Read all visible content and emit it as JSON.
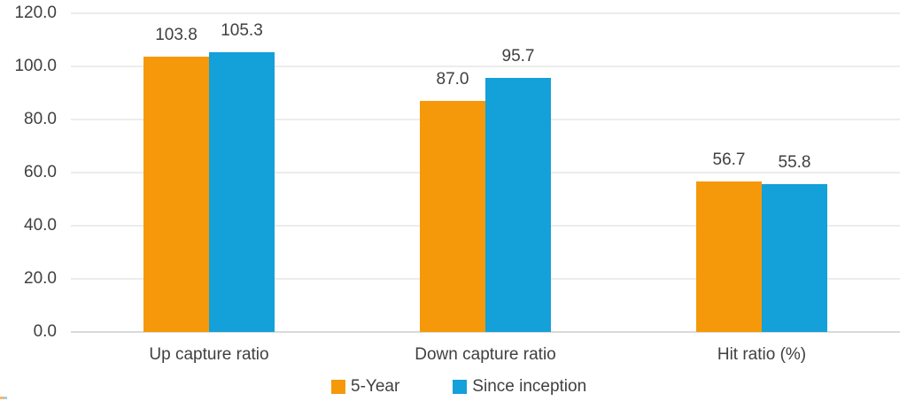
{
  "chart_data": {
    "type": "bar",
    "title": "",
    "xlabel": "",
    "ylabel": "",
    "categories": [
      "Up capture ratio",
      "Down capture ratio",
      "Hit ratio (%)"
    ],
    "series": [
      {
        "name": "5-Year",
        "color": "#F5990A",
        "values": [
          103.8,
          87.0,
          56.7
        ],
        "labels": [
          "103.8",
          "87.0",
          "56.7"
        ]
      },
      {
        "name": "Since inception",
        "color": "#14A0D8",
        "values": [
          105.3,
          95.7,
          55.8
        ],
        "labels": [
          "105.3",
          "95.7",
          "55.8"
        ]
      }
    ],
    "ylim": [
      0,
      120
    ],
    "ytick_step": 20,
    "ytick_labels": [
      "0.0",
      "20.0",
      "40.0",
      "60.0",
      "80.0",
      "100.0",
      "120.0"
    ],
    "grid": true,
    "legend_position": "bottom"
  },
  "colors": {
    "text": "#404040",
    "gridline": "#ECECEC",
    "axis_line": "#D9D9D9",
    "background": "#FFFFFF"
  }
}
